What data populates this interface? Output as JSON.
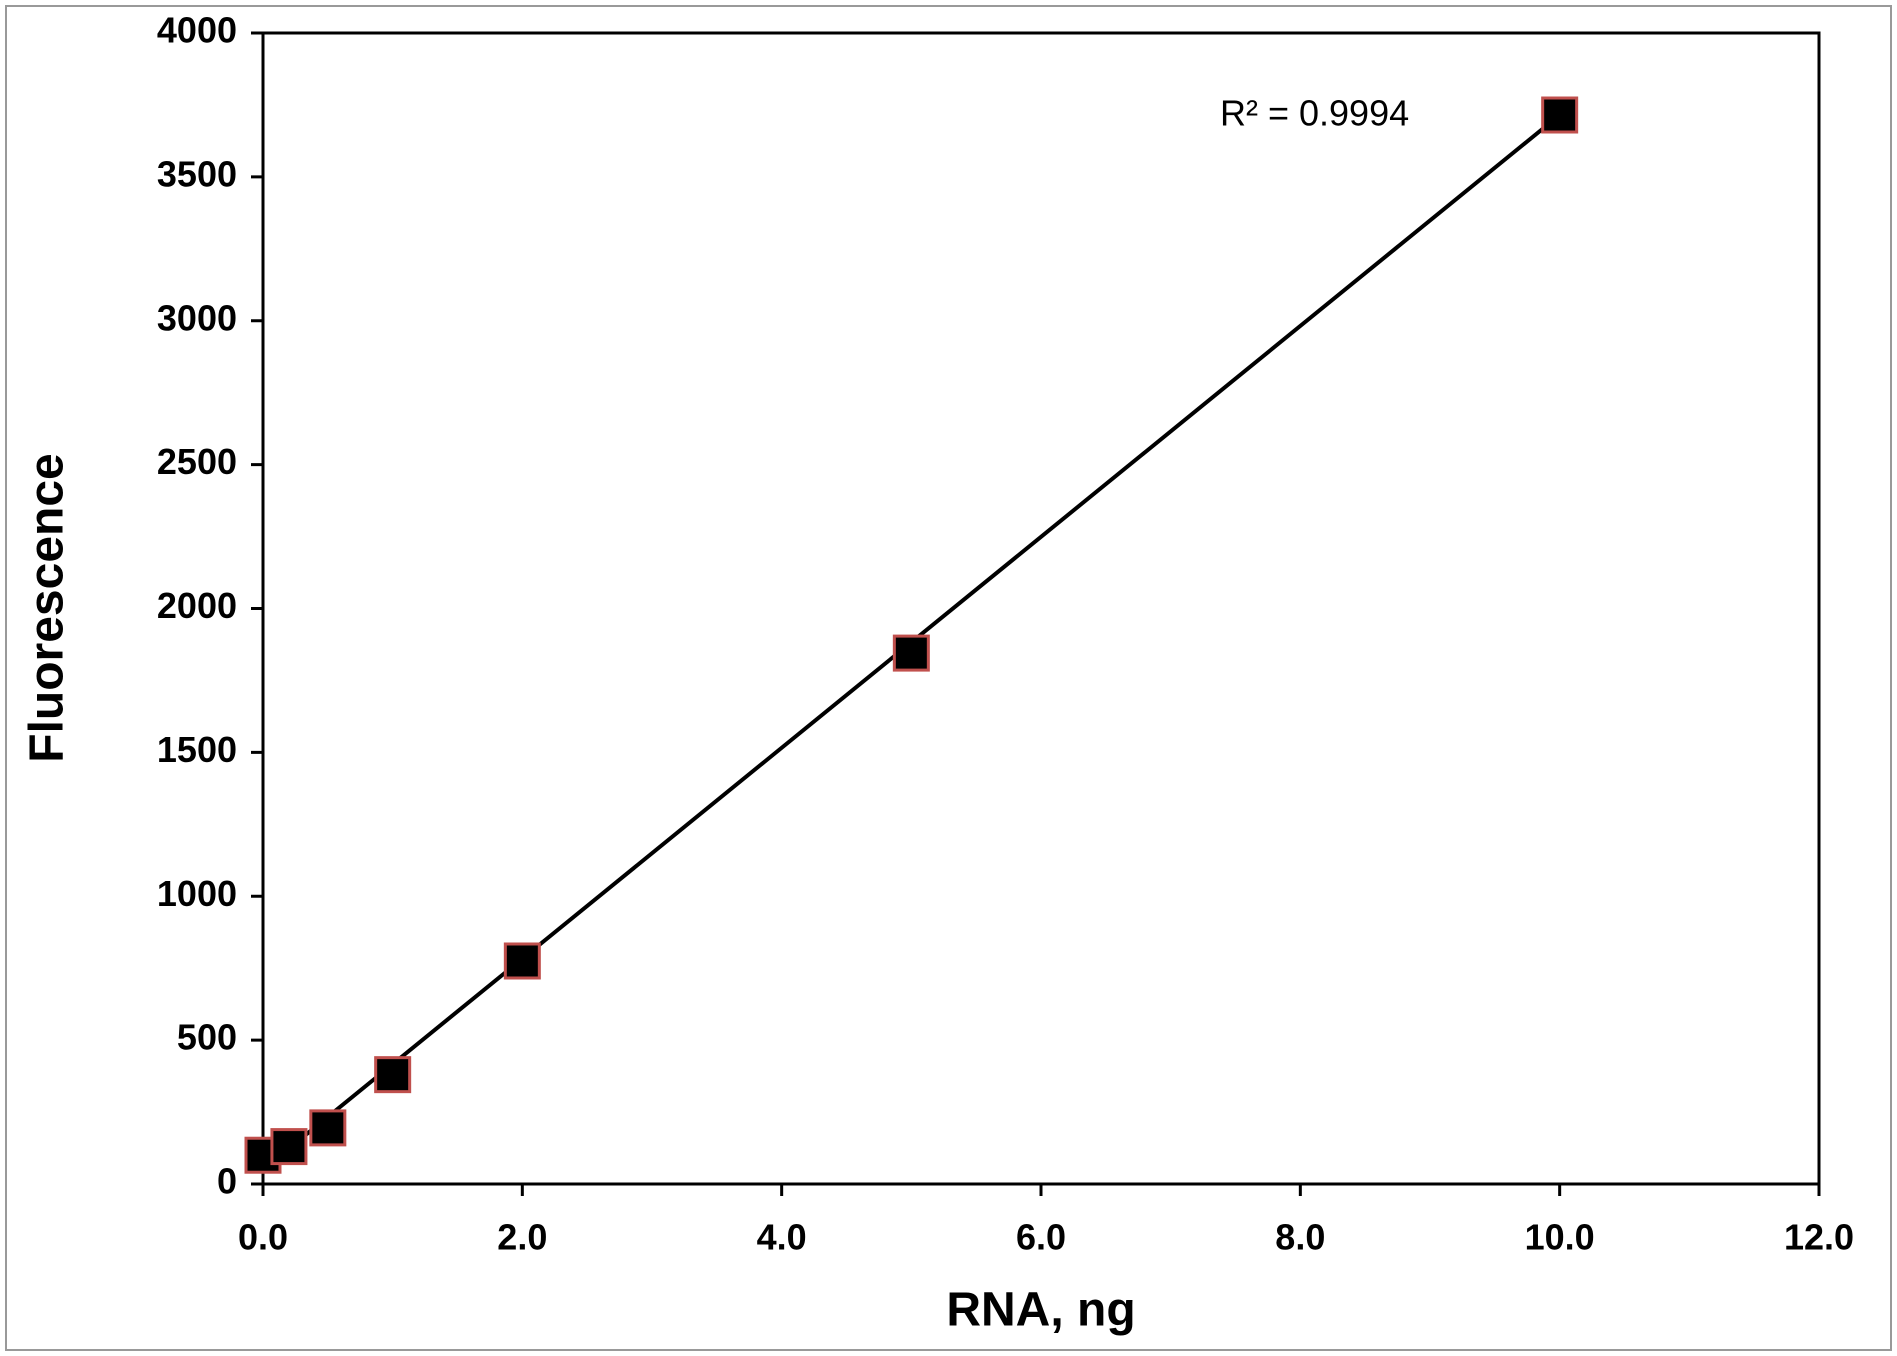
{
  "chart_data": {
    "type": "scatter",
    "x_label": "RNA, ng",
    "y_label": "Fluorescence",
    "annotation": "R² = 0.9994",
    "x": [
      0,
      0.2,
      0.5,
      1,
      2,
      5,
      10
    ],
    "values": [
      100,
      130,
      195,
      380,
      775,
      1845,
      3715
    ],
    "color": "#000000",
    "edge_color": "#c0504d",
    "trendline": {
      "x": [
        0,
        10
      ],
      "values": [
        50,
        3715
      ],
      "color": "#000000"
    },
    "xlim": [
      0,
      12
    ],
    "ylim": [
      0,
      4000
    ],
    "xticks": [
      {
        "value": 0,
        "label": "0.0"
      },
      {
        "value": 2,
        "label": "2.0"
      },
      {
        "value": 4,
        "label": "4.0"
      },
      {
        "value": 6,
        "label": "6.0"
      },
      {
        "value": 8,
        "label": "8.0"
      },
      {
        "value": 10,
        "label": "10.0"
      },
      {
        "value": 12,
        "label": "12.0"
      }
    ],
    "yticks": [
      0,
      500,
      1000,
      1500,
      2000,
      2500,
      3000,
      3500,
      4000
    ],
    "grid": false
  }
}
